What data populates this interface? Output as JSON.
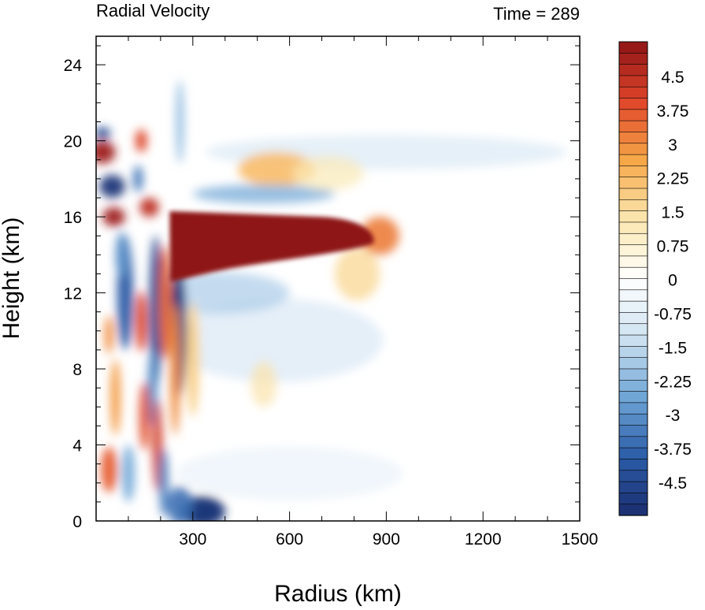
{
  "chart_data": {
    "type": "heatmap",
    "title_left": "Radial Velocity",
    "title_right": "Time = 289",
    "xlabel": "Radius (km)",
    "ylabel": "Height (km)",
    "xlim": [
      0,
      1500
    ],
    "ylim": [
      0,
      25.5
    ],
    "x_ticks": [
      300,
      600,
      900,
      1200,
      1500
    ],
    "x_tick_labels": [
      "300",
      "600",
      "900",
      "1200",
      "1500"
    ],
    "y_ticks": [
      0,
      4,
      8,
      12,
      16,
      20,
      24
    ],
    "y_tick_labels": [
      "0",
      "4",
      "8",
      "12",
      "16",
      "20",
      "24"
    ],
    "colorbar": {
      "min": -5.25,
      "max": 5.25,
      "step": 0.25,
      "labels": [
        "4.5",
        "3.75",
        "3",
        "2.25",
        "1.5",
        "0.75",
        "0",
        "-0.75",
        "-1.5",
        "-2.25",
        "-3",
        "-3.75",
        "-4.5"
      ],
      "label_values": [
        4.5,
        3.75,
        3,
        2.25,
        1.5,
        0.75,
        0,
        -0.75,
        -1.5,
        -2.25,
        -3,
        -3.75,
        -4.5
      ],
      "colormap": [
        "#1a2e6e",
        "#2c5da8",
        "#6fa6d6",
        "#cfe3f2",
        "#ffffff",
        "#fbe7b0",
        "#f6a848",
        "#e0452a",
        "#8e1416"
      ]
    },
    "features": [
      {
        "name": "outflow-jet",
        "r": [
          230,
          870
        ],
        "z": [
          12.8,
          16.2
        ],
        "value": 5.25
      },
      {
        "name": "inner-core-bands",
        "r": [
          0,
          240
        ],
        "z": [
          0,
          21
        ],
        "value_range": [
          -5.25,
          5.25
        ]
      },
      {
        "name": "upper-inflow-layer",
        "r": [
          400,
          1450
        ],
        "z": [
          17,
          20.5
        ],
        "value": -0.75
      },
      {
        "name": "lower-inflow-layer",
        "r": [
          250,
          900
        ],
        "z": [
          6,
          12
        ],
        "value": -1.5
      },
      {
        "name": "surface-inflow",
        "r": [
          200,
          400
        ],
        "z": [
          0,
          1.5
        ],
        "value": -5.25
      }
    ]
  }
}
